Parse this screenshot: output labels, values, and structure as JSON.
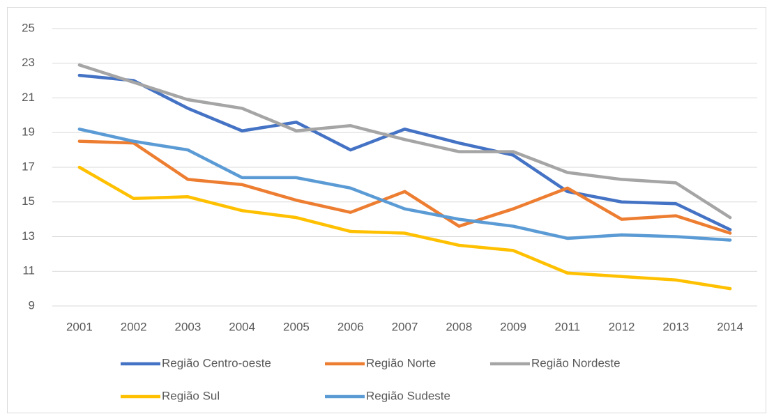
{
  "chart_data": {
    "type": "line",
    "categories": [
      "2001",
      "2002",
      "2003",
      "2004",
      "2005",
      "2006",
      "2007",
      "2008",
      "2009",
      "2011",
      "2012",
      "2013",
      "2014"
    ],
    "series": [
      {
        "name": "Região Centro-oeste",
        "color": "#4472c4",
        "values": [
          22.3,
          22.0,
          20.4,
          19.1,
          19.6,
          18.0,
          19.2,
          18.4,
          17.7,
          15.6,
          15.0,
          14.9,
          13.4
        ]
      },
      {
        "name": "Região Norte",
        "color": "#ed7d31",
        "values": [
          18.5,
          18.4,
          16.3,
          16.0,
          15.1,
          14.4,
          15.6,
          13.6,
          14.6,
          15.8,
          14.0,
          14.2,
          13.2
        ]
      },
      {
        "name": "Região Nordeste",
        "color": "#a5a5a5",
        "values": [
          22.9,
          21.9,
          20.9,
          20.4,
          19.1,
          19.4,
          18.6,
          17.9,
          17.9,
          16.7,
          16.3,
          16.1,
          14.1
        ]
      },
      {
        "name": "Região Sul",
        "color": "#ffc000",
        "values": [
          17.0,
          15.2,
          15.3,
          14.5,
          14.1,
          13.3,
          13.2,
          12.5,
          12.2,
          10.9,
          10.7,
          10.5,
          10.0
        ]
      },
      {
        "name": "Região Sudeste",
        "color": "#5b9bd5",
        "values": [
          19.2,
          18.5,
          18.0,
          16.4,
          16.4,
          15.8,
          14.6,
          14.0,
          13.6,
          12.9,
          13.1,
          13.0,
          12.8
        ]
      }
    ],
    "ylim": [
      9,
      25
    ],
    "yticks": [
      9,
      11,
      13,
      15,
      17,
      19,
      21,
      23,
      25
    ],
    "grid": true,
    "legend": "bottom"
  }
}
